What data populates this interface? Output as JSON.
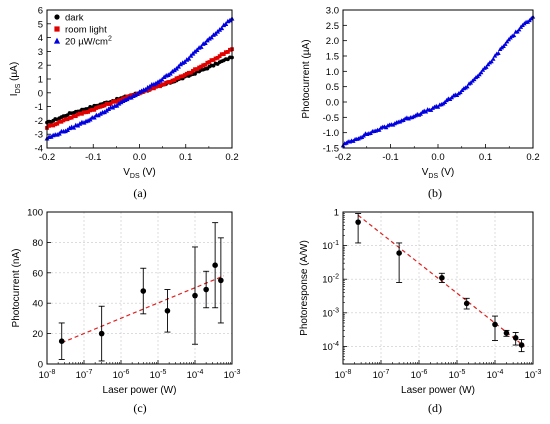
{
  "chart_data": [
    {
      "panel": "(a)",
      "type": "scatter",
      "xlabel": "V",
      "xlabel_sub": "DS",
      "xlabel_unit": " (V)",
      "ylabel": "I",
      "ylabel_sub": "DS",
      "ylabel_unit": " (µA)",
      "xlim": [
        -0.2,
        0.2
      ],
      "ylim": [
        -4,
        6
      ],
      "xticks": [
        -0.2,
        -0.1,
        0.0,
        0.1,
        0.2
      ],
      "xtick_labels": [
        "-0.2",
        "-0.1",
        "0.0",
        "0.1",
        "0.2"
      ],
      "yticks": [
        -4,
        -3,
        -2,
        -1,
        0,
        1,
        2,
        3,
        4,
        5,
        6
      ],
      "ytick_labels": [
        "-4",
        "-3",
        "-2",
        "-1",
        "0",
        "1",
        "2",
        "3",
        "4",
        "5",
        "6"
      ],
      "grid": false,
      "legend_position": "top-left",
      "series": [
        {
          "name": "dark",
          "color": "#000000",
          "marker": "circle",
          "x": [
            -0.2,
            -0.15,
            -0.1,
            -0.05,
            0.0,
            0.05,
            0.1,
            0.15,
            0.2
          ],
          "y": [
            -2.2,
            -1.5,
            -1.0,
            -0.5,
            0.0,
            0.55,
            1.15,
            1.85,
            2.6
          ]
        },
        {
          "name": "room light",
          "color": "#e00000",
          "marker": "square",
          "x": [
            -0.2,
            -0.15,
            -0.1,
            -0.05,
            0.0,
            0.05,
            0.1,
            0.15,
            0.2
          ],
          "y": [
            -2.5,
            -1.8,
            -1.2,
            -0.6,
            0.0,
            0.6,
            1.3,
            2.2,
            3.2
          ]
        },
        {
          "name": "20 µW/cm²",
          "color": "#0000e0",
          "marker": "triangle",
          "x": [
            -0.2,
            -0.15,
            -0.1,
            -0.05,
            0.0,
            0.05,
            0.1,
            0.15,
            0.2
          ],
          "y": [
            -3.3,
            -2.6,
            -1.8,
            -0.9,
            0.0,
            1.0,
            2.3,
            3.9,
            5.4
          ]
        }
      ]
    },
    {
      "panel": "(b)",
      "type": "scatter",
      "xlabel": "V",
      "xlabel_sub": "DS",
      "xlabel_unit": " (V)",
      "ylabel": "Photocurrent (µA)",
      "xlim": [
        -0.2,
        0.2
      ],
      "ylim": [
        -1.5,
        3.0
      ],
      "xticks": [
        -0.2,
        -0.1,
        0.0,
        0.1,
        0.2
      ],
      "xtick_labels": [
        "-0.2",
        "-0.1",
        "0.0",
        "0.1",
        "0.2"
      ],
      "yticks": [
        -1.5,
        -1.0,
        -0.5,
        0.0,
        0.5,
        1.0,
        1.5,
        2.0,
        2.5,
        3.0
      ],
      "ytick_labels": [
        "-1.5",
        "-1.0",
        "-0.5",
        "0.0",
        "0.5",
        "1.0",
        "1.5",
        "2.0",
        "2.5",
        "3.0"
      ],
      "grid": false,
      "series": [
        {
          "color": "#0000e0",
          "marker": "triangle",
          "x": [
            -0.2,
            -0.15,
            -0.1,
            -0.05,
            0.0,
            0.05,
            0.1,
            0.15,
            0.2
          ],
          "y": [
            -1.4,
            -1.05,
            -0.75,
            -0.45,
            -0.15,
            0.35,
            1.1,
            2.05,
            2.8
          ]
        }
      ]
    },
    {
      "panel": "(c)",
      "type": "scatter",
      "xlabel": "Laser power (W)",
      "ylabel": "Photocurrent (nA)",
      "xscale": "log",
      "xlim": [
        1e-08,
        0.001
      ],
      "ylim": [
        0,
        100
      ],
      "xticks": [
        1e-08,
        1e-07,
        1e-06,
        1e-05,
        0.0001,
        0.001
      ],
      "xtick_labels": [
        [
          "10",
          "-8"
        ],
        [
          "10",
          "-7"
        ],
        [
          "10",
          "-6"
        ],
        [
          "10",
          "-5"
        ],
        [
          "10",
          "-4"
        ],
        [
          "10",
          "-3"
        ]
      ],
      "yticks": [
        0,
        20,
        40,
        60,
        80,
        100
      ],
      "ytick_labels": [
        "0",
        "20",
        "40",
        "60",
        "80",
        "100"
      ],
      "grid": true,
      "points": {
        "x": [
          2.5e-08,
          3e-07,
          4e-06,
          1.8e-05,
          0.0001,
          0.0002,
          0.00035,
          0.0005
        ],
        "y": [
          15,
          20,
          48,
          35,
          45,
          49,
          65,
          55
        ],
        "yerr": [
          12,
          18,
          15,
          14,
          32,
          12,
          28,
          28
        ]
      },
      "fit": {
        "x": [
          2.5e-08,
          0.0006
        ],
        "y": [
          14,
          58
        ],
        "color": "#e02020",
        "style": "dashed"
      }
    },
    {
      "panel": "(d)",
      "type": "scatter",
      "xlabel": "Laser power (W)",
      "ylabel": "Photoresponse (A/W)",
      "xscale": "log",
      "yscale": "log",
      "xlim": [
        1e-08,
        0.001
      ],
      "ylim": [
        3e-05,
        1
      ],
      "xticks": [
        1e-08,
        1e-07,
        1e-06,
        1e-05,
        0.0001,
        0.001
      ],
      "xtick_labels": [
        [
          "10",
          "-8"
        ],
        [
          "10",
          "-7"
        ],
        [
          "10",
          "-6"
        ],
        [
          "10",
          "-5"
        ],
        [
          "10",
          "-4"
        ],
        [
          "10",
          "-3"
        ]
      ],
      "yticks": [
        0.0001,
        0.001,
        0.01,
        0.1,
        1
      ],
      "ytick_labels": [
        [
          "10",
          "-4"
        ],
        [
          "10",
          "-3"
        ],
        [
          "10",
          "-2"
        ],
        [
          "10",
          "-1"
        ],
        [
          "1",
          ""
        ]
      ],
      "grid": true,
      "points": {
        "x": [
          2.5e-08,
          3e-07,
          4e-06,
          1.8e-05,
          0.0001,
          0.0002,
          0.00035,
          0.0005
        ],
        "y": [
          0.5,
          0.06,
          0.011,
          0.0019,
          0.00045,
          0.00025,
          0.00018,
          0.00011
        ],
        "ylo": [
          0.12,
          0.008,
          0.008,
          0.0013,
          0.00015,
          0.0002,
          0.00011,
          7e-05
        ],
        "yhi": [
          0.9,
          0.12,
          0.015,
          0.0027,
          0.0008,
          0.0003,
          0.00026,
          0.00016
        ]
      },
      "fit": {
        "x": [
          2.5e-08,
          0.0006
        ],
        "y": [
          0.8,
          0.0001
        ],
        "color": "#e02020",
        "style": "dashed"
      }
    }
  ]
}
